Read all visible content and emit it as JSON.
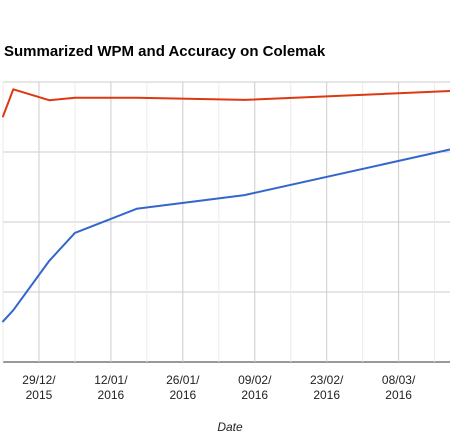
{
  "chart_data": {
    "type": "line",
    "title": "Summarized WPM and Accuracy on Colemak",
    "xlabel": "Date",
    "ylabel": "",
    "x_tick_labels": [
      [
        "29/12/",
        "2015"
      ],
      [
        "12/01/",
        "2016"
      ],
      [
        "26/01/",
        "2016"
      ],
      [
        "09/02/",
        "2016"
      ],
      [
        "23/02/",
        "2016"
      ],
      [
        "08/03/",
        "2016"
      ]
    ],
    "x_ticks": [
      "2015-12-29",
      "2016-01-12",
      "2016-01-26",
      "2016-02-09",
      "2016-02-23",
      "2016-03-08"
    ],
    "x_range": [
      "2015-12-22",
      "2016-03-18"
    ],
    "ylim": [
      0,
      100
    ],
    "y_gridlines": [
      0,
      25,
      50,
      75,
      100
    ],
    "grid": true,
    "series": [
      {
        "color": "#dc3912",
        "x": [
          "2015-12-22",
          "2015-12-24",
          "2015-12-31",
          "2016-01-05",
          "2016-01-17",
          "2016-02-07",
          "2016-03-18"
        ],
        "y": [
          87.7,
          97.4,
          93.5,
          94.4,
          94.4,
          93.6,
          96.8
        ]
      },
      {
        "color": "#3366cc",
        "x": [
          "2015-12-22",
          "2015-12-24",
          "2015-12-31",
          "2016-01-05",
          "2016-01-17",
          "2016-02-07",
          "2016-03-18"
        ],
        "y": [
          14.5,
          18.5,
          36.1,
          46.1,
          54.7,
          59.6,
          75.9
        ]
      }
    ]
  }
}
